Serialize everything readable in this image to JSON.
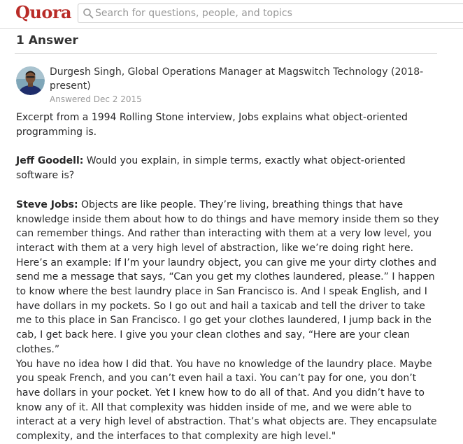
{
  "header": {
    "logo": "Quora",
    "search_placeholder": "Search for questions, people, and topics",
    "search_icon": "search-icon"
  },
  "answers": {
    "heading": "1 Answer"
  },
  "author": {
    "credential": "Durgesh Singh, Global Operations Manager at Magswitch Technology (2018-present)",
    "answered": "Answered Dec 2 2015"
  },
  "body": {
    "intro": "Excerpt from a 1994 Rolling Stone interview, Jobs explains what object-oriented programming is.",
    "q_speaker": "Jeff Goodell:",
    "q_text": " Would you explain, in simple terms, exactly what object-oriented software is?",
    "a_speaker": "Steve Jobs:",
    "a_text1": " Objects are like people. They’re living, breathing things that have knowledge inside them about how to do things and have memory inside them so they can remember things. And rather than interacting with them at a very low level, you interact with them at a very high level of abstraction, like we’re doing right here.",
    "a_text2": "Here’s an example: If I’m your laundry object, you can give me your dirty clothes and send me a message that says, “Can you get my clothes laundered, please.” I happen to know where the best laundry place in San Francisco is. And I speak English, and I have dollars in my pockets. So I go out and hail a taxicab and tell the driver to take me to this place in San Francisco. I go get your clothes laundered, I jump back in the cab, I get back here. I give you your clean clothes and say, “Here are your clean clothes.”",
    "a_text3": "You have no idea how I did that. You have no knowledge of the laundry place. Maybe you speak French, and you can’t even hail a taxi. You can’t pay for one, you don’t have dollars in your pocket. Yet I knew how to do all of that. And you didn’t have to know any of it. All that complexity was hidden inside of me, and we were able to interact at a very high level of abstraction. That’s what objects are. They encapsulate complexity, and the interfaces to that complexity are high level.\""
  },
  "colors": {
    "brand": "#b92b27",
    "text": "#282829",
    "muted": "#999999",
    "border": "#e2e2e2"
  }
}
